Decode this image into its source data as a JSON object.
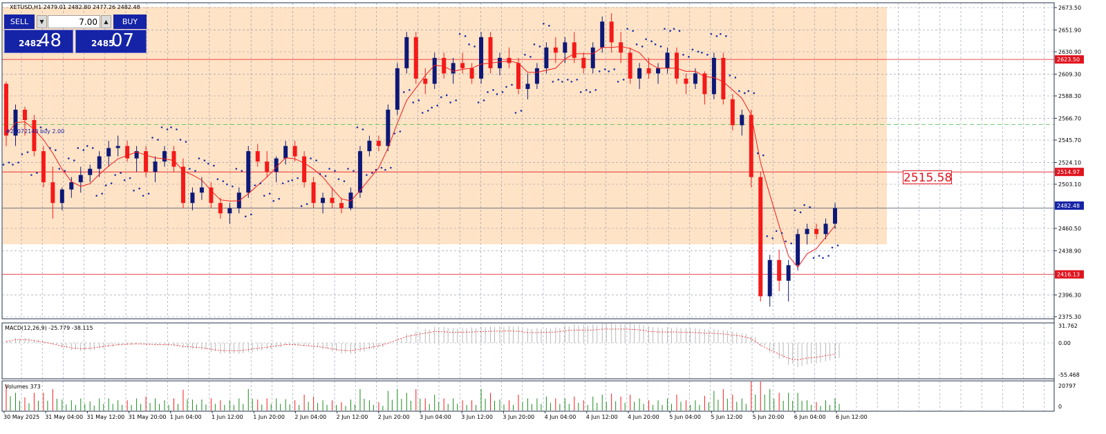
{
  "symbol_header": "XETUSD,H1  2479.01 2482.80 2477.26 2482.48",
  "trade_panel": {
    "sell_label": "SELL",
    "buy_label": "BUY",
    "lot": "7.00",
    "sell_price_small": "2482",
    "sell_price_big": "48",
    "buy_price_small": "2485",
    "buy_price_big": "07",
    "arrow_down": "▼",
    "arrow_up": "▲"
  },
  "order_label": "#25072148 buy 2.00",
  "price_axis_labels": [
    "2673.50",
    "2651.90",
    "2630.90",
    "2609.30",
    "2588.30",
    "2566.70",
    "2545.70",
    "2524.10",
    "2503.10",
    "2460.50",
    "2438.90",
    "2396.30",
    "2375.30"
  ],
  "price_badges": {
    "upper_line": "2623.50",
    "entry_line": "2514.97",
    "current": "2482.48",
    "lower_line": "2416.13"
  },
  "big_price_label": "2515.58",
  "macd": {
    "title": "MACD(12,26,9) -25.779 -38.115",
    "axis_labels": [
      "31.762",
      "0.00",
      "-55.468"
    ]
  },
  "volumes": {
    "title": "Volumes 373",
    "axis_labels": [
      "20797",
      "0"
    ]
  },
  "time_labels": [
    "30 May 2025",
    "31 May 04:00",
    "31 May 12:00",
    "31 May 20:00",
    "1 Jun 04:00",
    "1 Jun 12:00",
    "1 Jun 20:00",
    "2 Jun 04:00",
    "2 Jun 12:00",
    "2 Jun 20:00",
    "3 Jun 04:00",
    "3 Jun 12:00",
    "3 Jun 20:00",
    "4 Jun 04:00",
    "4 Jun 12:00",
    "4 Jun 20:00",
    "5 Jun 04:00",
    "5 Jun 12:00",
    "5 Jun 20:00",
    "6 Jun 04:00",
    "6 Jun 12:00"
  ],
  "colors": {
    "bull": "#0d1877",
    "bear": "#f41a1a",
    "highlight": "#ffe3c6",
    "sar": "#1d2ea8",
    "grid": "#8a93a8",
    "line": "#e0141e",
    "badge_red": "#e0141e",
    "badge_blue": "#1523a6"
  },
  "chart_data": {
    "type": "candlestick",
    "symbol": "XETUSD",
    "timeframe": "H1",
    "ylim": [
      2375.3,
      2673.5
    ],
    "sample_step_hours": 2,
    "candles": [
      [
        2600,
        2602,
        2540,
        2550
      ],
      [
        2550,
        2580,
        2540,
        2575
      ],
      [
        2575,
        2578,
        2550,
        2565
      ],
      [
        2565,
        2570,
        2530,
        2535
      ],
      [
        2535,
        2540,
        2500,
        2505
      ],
      [
        2505,
        2520,
        2470,
        2485
      ],
      [
        2485,
        2500,
        2478,
        2498
      ],
      [
        2498,
        2510,
        2490,
        2505
      ],
      [
        2505,
        2520,
        2495,
        2512
      ],
      [
        2512,
        2522,
        2505,
        2518
      ],
      [
        2518,
        2535,
        2510,
        2530
      ],
      [
        2530,
        2545,
        2520,
        2538
      ],
      [
        2538,
        2550,
        2530,
        2540
      ],
      [
        2540,
        2545,
        2525,
        2528
      ],
      [
        2528,
        2540,
        2515,
        2535
      ],
      [
        2535,
        2540,
        2510,
        2515
      ],
      [
        2515,
        2530,
        2505,
        2525
      ],
      [
        2525,
        2540,
        2520,
        2535
      ],
      [
        2535,
        2540,
        2515,
        2520
      ],
      [
        2520,
        2528,
        2480,
        2485
      ],
      [
        2485,
        2500,
        2478,
        2495
      ],
      [
        2495,
        2510,
        2488,
        2500
      ],
      [
        2500,
        2505,
        2480,
        2485
      ],
      [
        2485,
        2490,
        2470,
        2475
      ],
      [
        2475,
        2485,
        2465,
        2480
      ],
      [
        2480,
        2500,
        2475,
        2495
      ],
      [
        2495,
        2540,
        2490,
        2535
      ],
      [
        2535,
        2542,
        2520,
        2525
      ],
      [
        2525,
        2535,
        2510,
        2515
      ],
      [
        2515,
        2530,
        2505,
        2528
      ],
      [
        2528,
        2545,
        2522,
        2540
      ],
      [
        2540,
        2545,
        2525,
        2530
      ],
      [
        2530,
        2535,
        2500,
        2505
      ],
      [
        2505,
        2510,
        2480,
        2485
      ],
      [
        2485,
        2495,
        2475,
        2490
      ],
      [
        2490,
        2500,
        2480,
        2485
      ],
      [
        2485,
        2490,
        2475,
        2480
      ],
      [
        2480,
        2500,
        2478,
        2495
      ],
      [
        2495,
        2540,
        2490,
        2535
      ],
      [
        2535,
        2550,
        2530,
        2545
      ],
      [
        2545,
        2550,
        2535,
        2540
      ],
      [
        2540,
        2580,
        2535,
        2575
      ],
      [
        2575,
        2620,
        2570,
        2615
      ],
      [
        2615,
        2650,
        2610,
        2645
      ],
      [
        2645,
        2650,
        2600,
        2605
      ],
      [
        2605,
        2615,
        2590,
        2600
      ],
      [
        2600,
        2630,
        2595,
        2625
      ],
      [
        2625,
        2630,
        2605,
        2610
      ],
      [
        2610,
        2625,
        2600,
        2620
      ],
      [
        2620,
        2630,
        2610,
        2615
      ],
      [
        2615,
        2620,
        2600,
        2605
      ],
      [
        2605,
        2650,
        2600,
        2645
      ],
      [
        2645,
        2650,
        2610,
        2615
      ],
      [
        2615,
        2630,
        2608,
        2625
      ],
      [
        2625,
        2635,
        2615,
        2620
      ],
      [
        2620,
        2625,
        2590,
        2595
      ],
      [
        2595,
        2610,
        2585,
        2600
      ],
      [
        2600,
        2620,
        2595,
        2615
      ],
      [
        2615,
        2640,
        2610,
        2635
      ],
      [
        2635,
        2645,
        2620,
        2630
      ],
      [
        2630,
        2645,
        2620,
        2640
      ],
      [
        2640,
        2650,
        2620,
        2625
      ],
      [
        2625,
        2630,
        2610,
        2615
      ],
      [
        2615,
        2640,
        2610,
        2635
      ],
      [
        2635,
        2665,
        2630,
        2660
      ],
      [
        2660,
        2668,
        2630,
        2640
      ],
      [
        2640,
        2650,
        2620,
        2630
      ],
      [
        2630,
        2635,
        2600,
        2605
      ],
      [
        2605,
        2620,
        2595,
        2615
      ],
      [
        2615,
        2625,
        2605,
        2610
      ],
      [
        2610,
        2620,
        2600,
        2615
      ],
      [
        2615,
        2635,
        2610,
        2630
      ],
      [
        2630,
        2635,
        2600,
        2605
      ],
      [
        2605,
        2610,
        2590,
        2600
      ],
      [
        2600,
        2615,
        2595,
        2610
      ],
      [
        2610,
        2612,
        2580,
        2590
      ],
      [
        2590,
        2630,
        2585,
        2625
      ],
      [
        2625,
        2630,
        2580,
        2585
      ],
      [
        2585,
        2590,
        2555,
        2560
      ],
      [
        2560,
        2575,
        2550,
        2570
      ],
      [
        2570,
        2575,
        2500,
        2510
      ],
      [
        2510,
        2515,
        2390,
        2395
      ],
      [
        2395,
        2435,
        2385,
        2430
      ],
      [
        2430,
        2440,
        2400,
        2410
      ],
      [
        2410,
        2430,
        2390,
        2425
      ],
      [
        2425,
        2460,
        2420,
        2455
      ],
      [
        2455,
        2465,
        2445,
        2460
      ],
      [
        2460,
        2465,
        2450,
        2455
      ],
      [
        2455,
        2470,
        2450,
        2465
      ],
      [
        2465,
        2485,
        2460,
        2480
      ]
    ],
    "horizontal_levels": [
      2623.5,
      2514.97,
      2416.13
    ],
    "order_level": 2560.7,
    "macd": {
      "value": -25.779,
      "signal": -38.115,
      "ylim": [
        -55.468,
        31.762
      ]
    },
    "volume": {
      "last": 373,
      "ymax": 20797
    }
  }
}
